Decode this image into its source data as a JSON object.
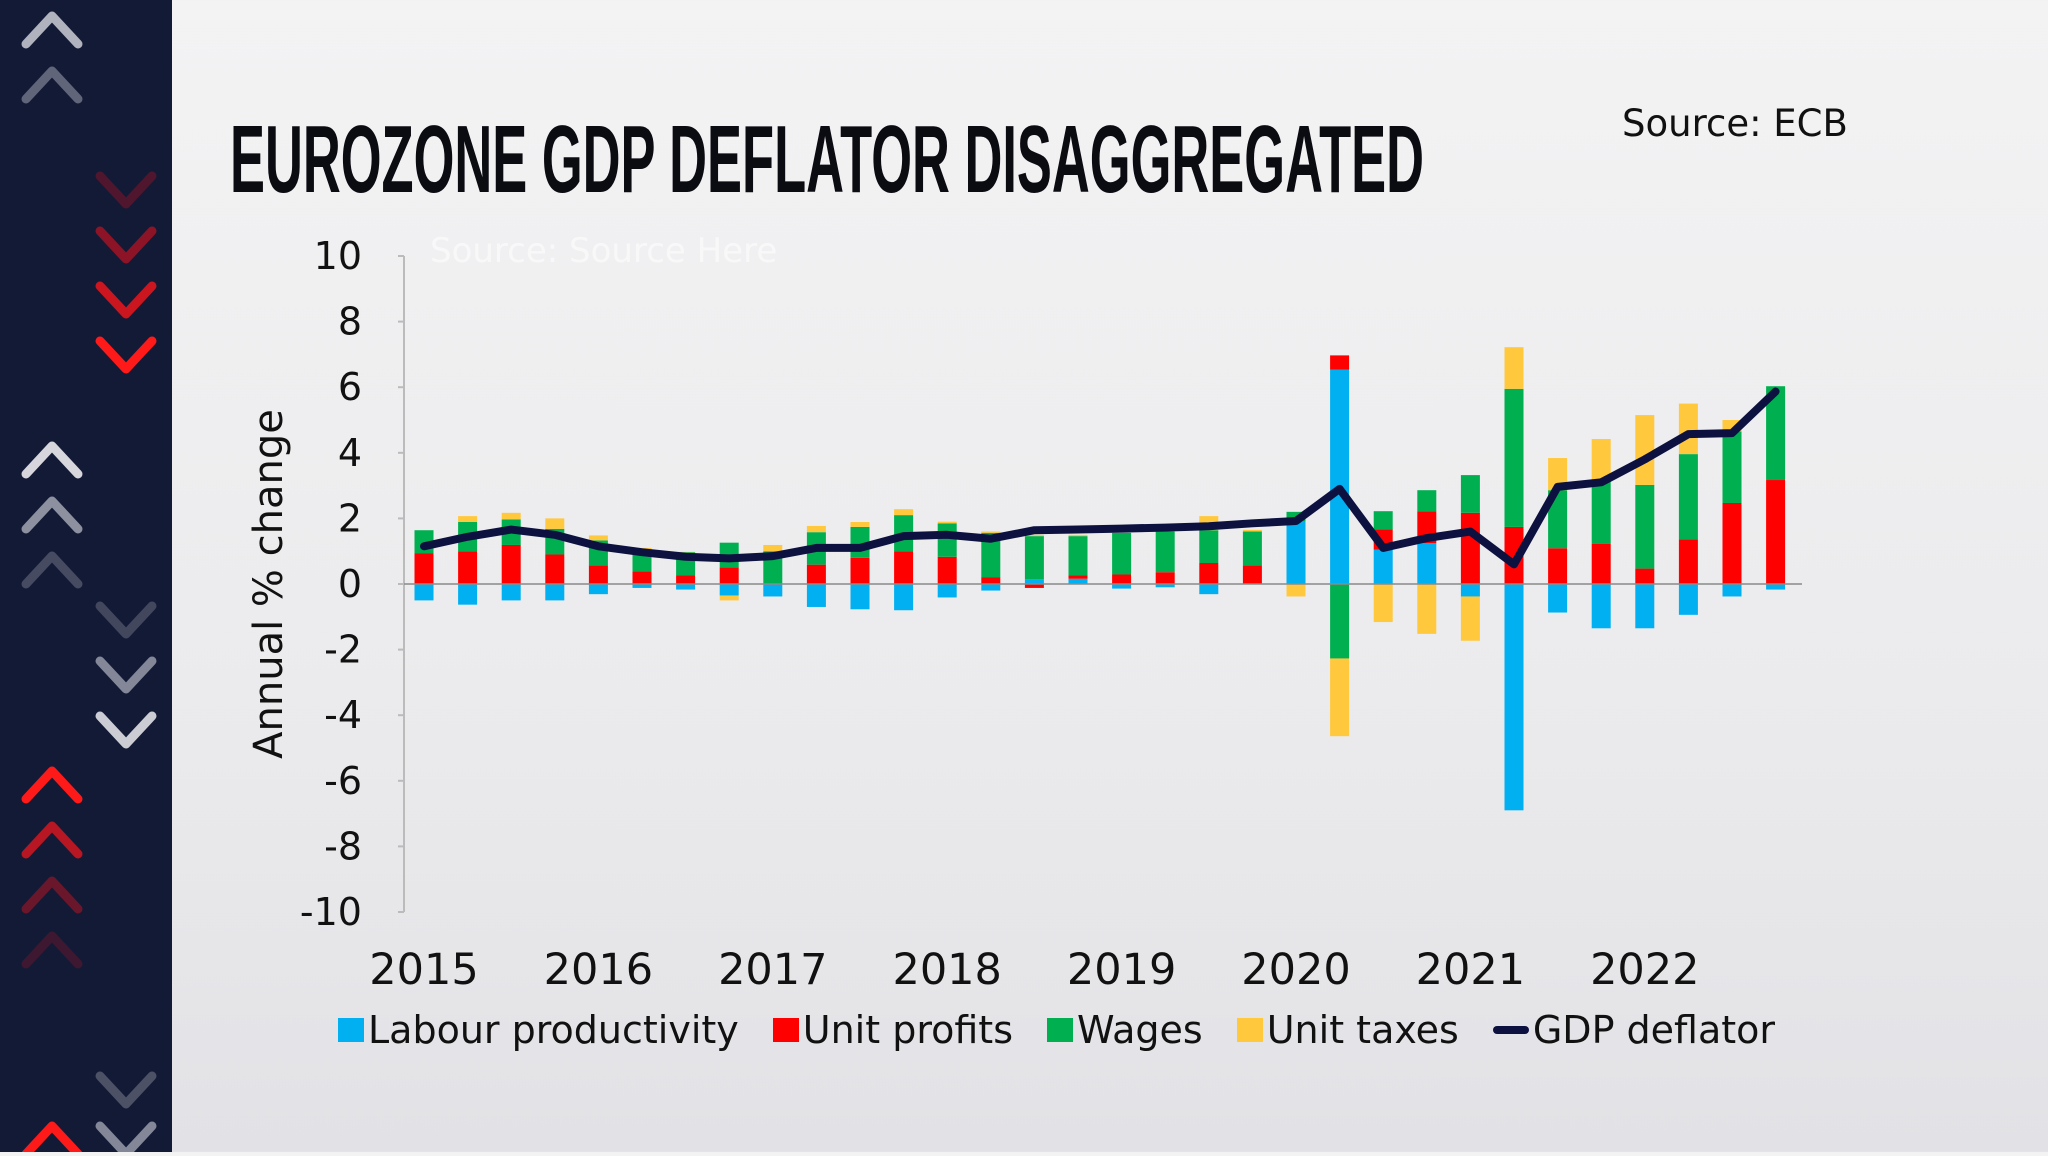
{
  "title": "EUROZONE GDP DEFLATOR DISAGGREGATED",
  "source": "Source: ECB",
  "watermark": "Source: Source Here",
  "colors": {
    "labour_productivity": "#00b0f0",
    "unit_profits": "#ff0000",
    "wages": "#00b050",
    "unit_taxes": "#ffc83d",
    "gdp_deflator": "#0d1140",
    "sidebar": "#131a36"
  },
  "chart_data": {
    "type": "bar",
    "stacked": true,
    "title": "EUROZONE GDP DEFLATOR DISAGGREGATED",
    "xlabel": "",
    "ylabel": "Annual % change",
    "ylim": [
      -10,
      10
    ],
    "yticks": [
      "10",
      "8",
      "6",
      "4",
      "2",
      "0",
      "-2",
      "-4",
      "-6",
      "-8",
      "-10"
    ],
    "ytick_values": [
      10,
      8,
      6,
      4,
      2,
      0,
      -2,
      -4,
      -6,
      -8,
      -10
    ],
    "xtick_labels": [
      "2015",
      "2016",
      "2017",
      "2018",
      "2019",
      "2020",
      "2021",
      "2022"
    ],
    "categories": [
      "2015Q1",
      "2015Q2",
      "2015Q3",
      "2015Q4",
      "2016Q1",
      "2016Q2",
      "2016Q3",
      "2016Q4",
      "2017Q1",
      "2017Q2",
      "2017Q3",
      "2017Q4",
      "2018Q1",
      "2018Q2",
      "2018Q3",
      "2018Q4",
      "2019Q1",
      "2019Q2",
      "2019Q3",
      "2019Q4",
      "2020Q1",
      "2020Q2",
      "2020Q3",
      "2020Q4",
      "2021Q1",
      "2021Q2",
      "2021Q3",
      "2021Q4",
      "2022Q1",
      "2022Q2",
      "2022Q3",
      "2022Q4"
    ],
    "legend_position": "bottom",
    "grid": false,
    "series": [
      {
        "name": "Labour productivity",
        "kind": "bar",
        "values": [
          -0.5,
          -0.63,
          -0.5,
          -0.5,
          -0.31,
          -0.12,
          -0.17,
          -0.35,
          -0.38,
          -0.7,
          -0.77,
          -0.8,
          -0.41,
          -0.2,
          0.15,
          0.16,
          -0.14,
          -0.1,
          -0.31,
          0,
          1.9,
          6.54,
          1.05,
          1.25,
          -0.38,
          -6.9,
          -0.87,
          -1.35,
          -1.35,
          -0.94,
          -0.38,
          -0.17
        ]
      },
      {
        "name": "Unit profits",
        "kind": "bar",
        "values": [
          0.93,
          1.0,
          1.19,
          0.9,
          0.57,
          0.39,
          0.27,
          0.51,
          0,
          0.59,
          0.8,
          1.0,
          0.83,
          0.21,
          -0.12,
          0.11,
          0.29,
          0.36,
          0.64,
          0.57,
          0,
          0.43,
          0.61,
          0.97,
          2.17,
          1.74,
          1.09,
          1.22,
          0.47,
          1.36,
          2.47,
          3.17
        ]
      },
      {
        "name": "Wages",
        "kind": "bar",
        "values": [
          0.71,
          0.89,
          0.78,
          0.78,
          0.76,
          0.66,
          0.7,
          0.75,
          1.0,
          0.99,
          0.94,
          1.1,
          1.02,
          1.35,
          1.31,
          1.19,
          1.27,
          1.24,
          1.0,
          1.03,
          0.3,
          -2.27,
          0.56,
          0.64,
          1.15,
          4.21,
          1.77,
          1.97,
          2.55,
          2.6,
          2.18,
          2.86
        ]
      },
      {
        "name": "Unit taxes",
        "kind": "bar",
        "values": [
          0,
          0.18,
          0.2,
          0.32,
          0.15,
          0.05,
          0.01,
          -0.15,
          0.19,
          0.19,
          0.15,
          0.18,
          0.05,
          0.04,
          0.04,
          0.04,
          0,
          0,
          0.43,
          0.05,
          -0.38,
          -2.37,
          -1.16,
          -1.52,
          -1.35,
          1.27,
          0.98,
          1.23,
          2.13,
          1.54,
          0.35,
          0
        ]
      },
      {
        "name": "GDP deflator",
        "kind": "line",
        "values": [
          1.15,
          1.44,
          1.66,
          1.5,
          1.15,
          0.97,
          0.83,
          0.78,
          0.85,
          1.1,
          1.1,
          1.46,
          1.5,
          1.38,
          1.64,
          1.66,
          1.69,
          1.72,
          1.76,
          1.85,
          1.92,
          2.9,
          1.1,
          1.4,
          1.6,
          0.6,
          2.96,
          3.1,
          3.8,
          4.57,
          4.6,
          5.87
        ]
      }
    ]
  },
  "legend": [
    {
      "label": "Labour productivity",
      "type": "box"
    },
    {
      "label": "Unit profits",
      "type": "box"
    },
    {
      "label": "Wages",
      "type": "box"
    },
    {
      "label": "Unit taxes",
      "type": "box"
    },
    {
      "label": "GDP deflator",
      "type": "line"
    }
  ]
}
